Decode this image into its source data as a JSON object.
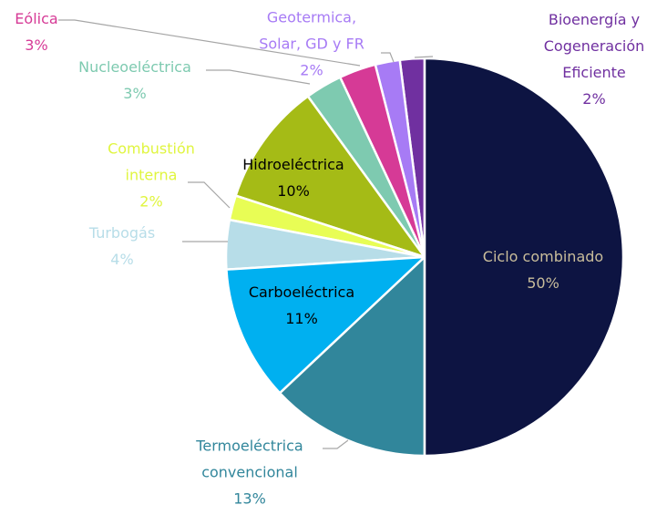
{
  "chart_data": {
    "type": "pie",
    "categories": [
      "Ciclo combinado",
      "Termoeléctrica convencional",
      "Carboeléctrica",
      "Turbogás",
      "Combustión interna",
      "Hidroeléctrica",
      "Nucleoeléctrica",
      "Eólica",
      "Geotermica, Solar, GD y FR",
      "Bioenergía y Cogeneración Eficiente"
    ],
    "values": [
      50,
      13,
      11,
      4,
      2,
      10,
      3,
      3,
      2,
      2
    ],
    "value_labels": [
      "50%",
      "13%",
      "11%",
      "4%",
      "2%",
      "10%",
      "3%",
      "3%",
      "2%",
      "2%"
    ],
    "colors": [
      "#0d1442",
      "#31869b",
      "#00b0f0",
      "#b7dde8",
      "#e8fd55",
      "#a5bb16",
      "#7ecab0",
      "#d63a96",
      "#a77bf5",
      "#7030a0"
    ],
    "label_colors": [
      "#c9bd9b",
      "#31869b",
      "#000000",
      "#b7dde8",
      "#e0f53f",
      "#000000",
      "#7ecab0",
      "#d63a96",
      "#a77bf5",
      "#7030a0"
    ]
  }
}
